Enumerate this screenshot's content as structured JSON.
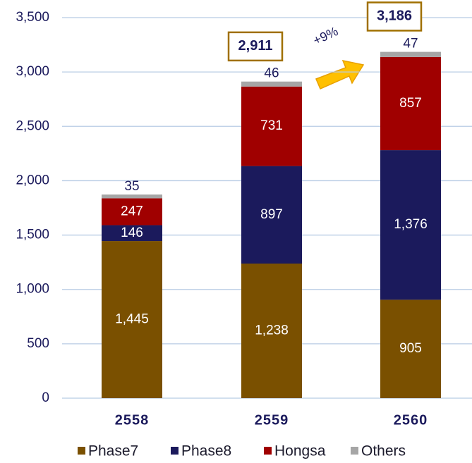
{
  "chart_data": {
    "type": "stacked-bar",
    "categories": [
      "2558",
      "2559",
      "2560"
    ],
    "series": [
      {
        "name": "Phase7",
        "color": "#7a5000",
        "values": [
          1445,
          1238,
          905
        ],
        "value_labels": [
          "1,445",
          "1,238",
          "905"
        ]
      },
      {
        "name": "Phase8",
        "color": "#1b1a5c",
        "values": [
          146,
          897,
          1376
        ],
        "value_labels": [
          "146",
          "897",
          "1,376"
        ]
      },
      {
        "name": "Hongsa",
        "color": "#a00000",
        "values": [
          247,
          731,
          857
        ],
        "value_labels": [
          "247",
          "731",
          "857"
        ]
      },
      {
        "name": "Others",
        "color": "#a6a6a6",
        "values": [
          35,
          46,
          47
        ],
        "value_labels": [
          "35",
          "46",
          "47"
        ]
      }
    ],
    "totals": [
      null,
      2911,
      3186
    ],
    "total_labels": [
      null,
      "2,911",
      "3,186"
    ],
    "annotation": "+9%",
    "ylim": [
      0,
      3500
    ],
    "yticks": [
      0,
      500,
      {
        "value": 1000,
        "label": "1,000"
      },
      {
        "value": 1500,
        "label": "1,500"
      },
      {
        "value": 2000,
        "label": "2,000"
      },
      {
        "value": 2500,
        "label": "2,500"
      },
      {
        "value": 3000,
        "label": "3,000"
      },
      {
        "value": 3500,
        "label": "3,500"
      }
    ],
    "grid": true
  }
}
